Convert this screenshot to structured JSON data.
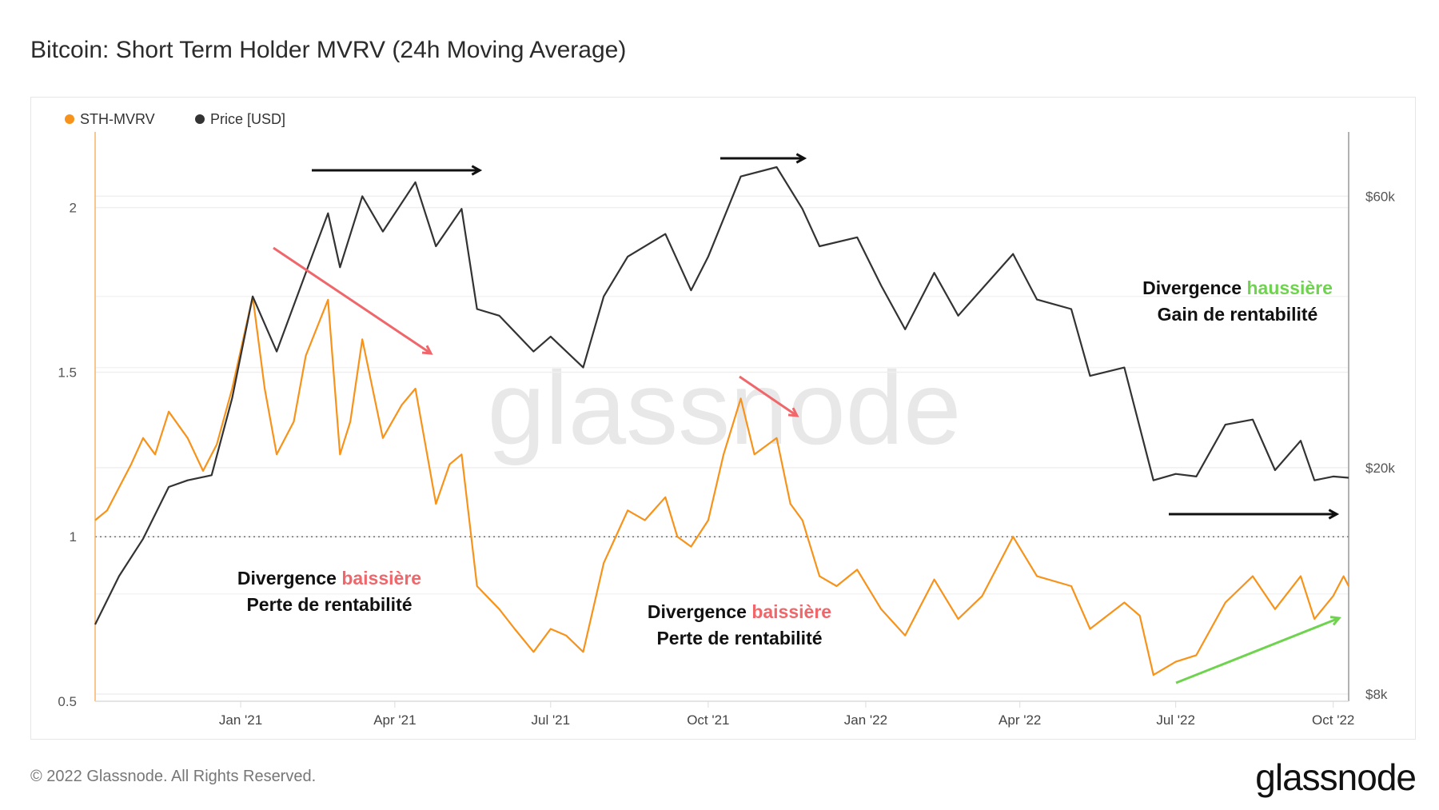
{
  "title": "Bitcoin: Short Term Holder MVRV (24h Moving Average)",
  "footer": "© 2022 Glassnode. All Rights Reserved.",
  "logo": "glassnode",
  "watermark": "glassnode",
  "colors": {
    "mvrv": "#f7931a",
    "price": "#333333",
    "bearish": "#f0676b",
    "bullish": "#6fd34f",
    "arrow": "#111111"
  },
  "annotations": {
    "bear1": {
      "word": "Divergence",
      "highlight": "baissière",
      "line2": "Perte de rentabilité"
    },
    "bear2": {
      "word": "Divergence",
      "highlight": "baissière",
      "line2": "Perte de rentabilité"
    },
    "bull": {
      "word": "Divergence",
      "highlight": "haussière",
      "line2": "Gain de rentabilité"
    }
  },
  "chart_data": {
    "type": "line",
    "title": "Bitcoin: Short Term Holder MVRV (24h Moving Average)",
    "legend": [
      "STH-MVRV",
      "Price [USD]"
    ],
    "legend_position": "top-left",
    "x_ticks": [
      "Jan '21",
      "Apr '21",
      "Jul '21",
      "Oct '21",
      "Jan '22",
      "Apr '22",
      "Jul '22",
      "Oct '22"
    ],
    "x_tick_dates": [
      "2021-01-01",
      "2021-04-01",
      "2021-07-01",
      "2021-10-01",
      "2022-01-01",
      "2022-04-01",
      "2022-07-01",
      "2022-10-01"
    ],
    "xlim": [
      "2020-10-08",
      "2022-10-10"
    ],
    "y_left": {
      "ticks": [
        "0.5",
        "1",
        "1.5",
        "2"
      ],
      "tick_values": [
        0.5,
        1,
        1.5,
        2
      ],
      "lim": [
        0.5,
        2.23
      ],
      "reference_line": 1
    },
    "y_right": {
      "scale": "log",
      "ticks": [
        "$8k",
        "$20k",
        "$60k"
      ],
      "tick_values": [
        8000,
        20000,
        60000
      ]
    },
    "grid": true,
    "series": [
      {
        "name": "STH-MVRV",
        "axis": "left",
        "points": [
          [
            "2020-10-08",
            1.05
          ],
          [
            "2020-10-15",
            1.08
          ],
          [
            "2020-10-22",
            1.15
          ],
          [
            "2020-10-29",
            1.22
          ],
          [
            "2020-11-05",
            1.3
          ],
          [
            "2020-11-12",
            1.25
          ],
          [
            "2020-11-20",
            1.38
          ],
          [
            "2020-12-01",
            1.3
          ],
          [
            "2020-12-10",
            1.2
          ],
          [
            "2020-12-18",
            1.28
          ],
          [
            "2020-12-27",
            1.45
          ],
          [
            "2021-01-08",
            1.73
          ],
          [
            "2021-01-15",
            1.45
          ],
          [
            "2021-01-22",
            1.25
          ],
          [
            "2021-02-01",
            1.35
          ],
          [
            "2021-02-08",
            1.55
          ],
          [
            "2021-02-21",
            1.72
          ],
          [
            "2021-02-28",
            1.25
          ],
          [
            "2021-03-06",
            1.35
          ],
          [
            "2021-03-13",
            1.6
          ],
          [
            "2021-03-25",
            1.3
          ],
          [
            "2021-04-05",
            1.4
          ],
          [
            "2021-04-13",
            1.45
          ],
          [
            "2021-04-25",
            1.1
          ],
          [
            "2021-05-03",
            1.22
          ],
          [
            "2021-05-10",
            1.25
          ],
          [
            "2021-05-19",
            0.85
          ],
          [
            "2021-06-01",
            0.78
          ],
          [
            "2021-06-10",
            0.72
          ],
          [
            "2021-06-21",
            0.65
          ],
          [
            "2021-07-01",
            0.72
          ],
          [
            "2021-07-10",
            0.7
          ],
          [
            "2021-07-20",
            0.65
          ],
          [
            "2021-08-01",
            0.92
          ],
          [
            "2021-08-15",
            1.08
          ],
          [
            "2021-08-25",
            1.05
          ],
          [
            "2021-09-06",
            1.12
          ],
          [
            "2021-09-13",
            1.0
          ],
          [
            "2021-09-21",
            0.97
          ],
          [
            "2021-10-01",
            1.05
          ],
          [
            "2021-10-10",
            1.25
          ],
          [
            "2021-10-20",
            1.42
          ],
          [
            "2021-10-28",
            1.25
          ],
          [
            "2021-11-10",
            1.3
          ],
          [
            "2021-11-18",
            1.1
          ],
          [
            "2021-11-25",
            1.05
          ],
          [
            "2021-12-05",
            0.88
          ],
          [
            "2021-12-15",
            0.85
          ],
          [
            "2021-12-27",
            0.9
          ],
          [
            "2022-01-10",
            0.78
          ],
          [
            "2022-01-24",
            0.7
          ],
          [
            "2022-02-10",
            0.87
          ],
          [
            "2022-02-24",
            0.75
          ],
          [
            "2022-03-10",
            0.82
          ],
          [
            "2022-03-28",
            1.0
          ],
          [
            "2022-04-11",
            0.88
          ],
          [
            "2022-05-01",
            0.85
          ],
          [
            "2022-05-12",
            0.72
          ],
          [
            "2022-06-01",
            0.8
          ],
          [
            "2022-06-10",
            0.76
          ],
          [
            "2022-06-18",
            0.58
          ],
          [
            "2022-07-01",
            0.62
          ],
          [
            "2022-07-13",
            0.64
          ],
          [
            "2022-07-30",
            0.8
          ],
          [
            "2022-08-15",
            0.88
          ],
          [
            "2022-08-28",
            0.78
          ],
          [
            "2022-09-12",
            0.88
          ],
          [
            "2022-09-20",
            0.75
          ],
          [
            "2022-10-01",
            0.82
          ],
          [
            "2022-10-07",
            0.88
          ],
          [
            "2022-10-10",
            0.85
          ]
        ]
      },
      {
        "name": "Price [USD]",
        "axis": "right",
        "points": [
          [
            "2020-10-08",
            10600
          ],
          [
            "2020-10-22",
            12900
          ],
          [
            "2020-11-05",
            15000
          ],
          [
            "2020-11-20",
            18500
          ],
          [
            "2020-12-01",
            19000
          ],
          [
            "2020-12-15",
            19400
          ],
          [
            "2020-12-27",
            26500
          ],
          [
            "2021-01-08",
            40000
          ],
          [
            "2021-01-22",
            32000
          ],
          [
            "2021-02-08",
            44000
          ],
          [
            "2021-02-21",
            56000
          ],
          [
            "2021-02-28",
            45000
          ],
          [
            "2021-03-13",
            60000
          ],
          [
            "2021-03-25",
            52000
          ],
          [
            "2021-04-13",
            63500
          ],
          [
            "2021-04-25",
            49000
          ],
          [
            "2021-05-10",
            57000
          ],
          [
            "2021-05-19",
            38000
          ],
          [
            "2021-06-01",
            37000
          ],
          [
            "2021-06-21",
            32000
          ],
          [
            "2021-07-01",
            34000
          ],
          [
            "2021-07-20",
            30000
          ],
          [
            "2021-08-01",
            40000
          ],
          [
            "2021-08-15",
            47000
          ],
          [
            "2021-09-06",
            51500
          ],
          [
            "2021-09-21",
            41000
          ],
          [
            "2021-10-01",
            47000
          ],
          [
            "2021-10-20",
            65000
          ],
          [
            "2021-11-10",
            67500
          ],
          [
            "2021-11-25",
            57000
          ],
          [
            "2021-12-05",
            49000
          ],
          [
            "2021-12-27",
            50800
          ],
          [
            "2022-01-10",
            41800
          ],
          [
            "2022-01-24",
            35000
          ],
          [
            "2022-02-10",
            44000
          ],
          [
            "2022-02-24",
            37000
          ],
          [
            "2022-03-28",
            47500
          ],
          [
            "2022-04-11",
            39500
          ],
          [
            "2022-05-01",
            38000
          ],
          [
            "2022-05-12",
            29000
          ],
          [
            "2022-06-01",
            30000
          ],
          [
            "2022-06-18",
            19000
          ],
          [
            "2022-07-01",
            19500
          ],
          [
            "2022-07-13",
            19300
          ],
          [
            "2022-07-30",
            23800
          ],
          [
            "2022-08-15",
            24300
          ],
          [
            "2022-08-28",
            19800
          ],
          [
            "2022-09-12",
            22300
          ],
          [
            "2022-09-20",
            19000
          ],
          [
            "2022-10-01",
            19300
          ],
          [
            "2022-10-10",
            19200
          ]
        ]
      }
    ]
  }
}
